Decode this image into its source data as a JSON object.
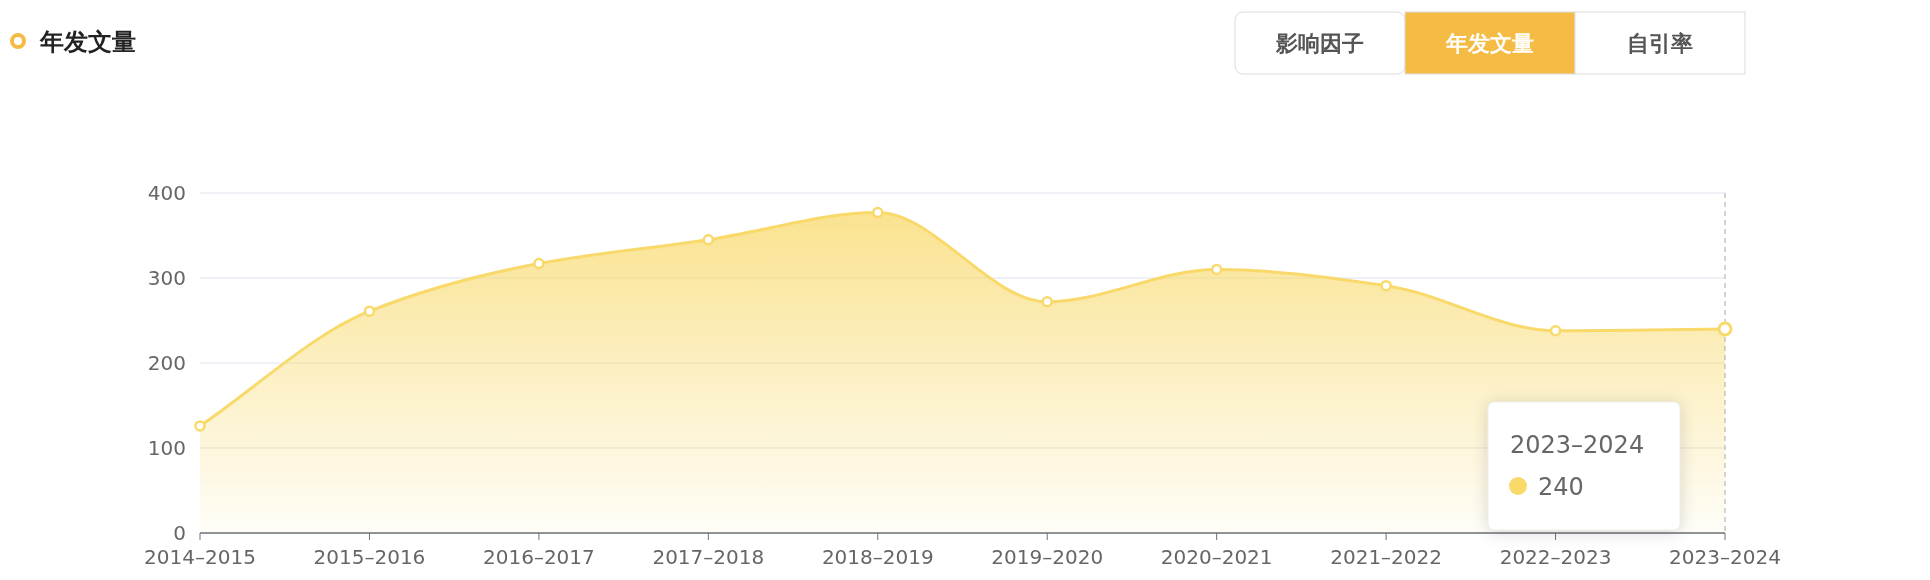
{
  "chart_data": {
    "type": "area",
    "title": "年发文量",
    "categories": [
      "2014–2015",
      "2015–2016",
      "2016–2017",
      "2017–2018",
      "2018–2019",
      "2019–2020",
      "2020–2021",
      "2021–2022",
      "2022–2023",
      "2023–2024"
    ],
    "series": [
      {
        "color": "#f8d96a",
        "values": [
          126,
          261,
          317,
          345,
          377,
          272,
          310,
          291,
          238,
          240
        ]
      }
    ],
    "ylim": [
      0,
      400
    ],
    "yticks": [
      0,
      100,
      200,
      300,
      400
    ],
    "grid": "y",
    "marker": "circle",
    "line_style": "solid",
    "annotations": [
      "影响因子",
      "年发文量",
      "自引率",
      "240"
    ]
  }
}
